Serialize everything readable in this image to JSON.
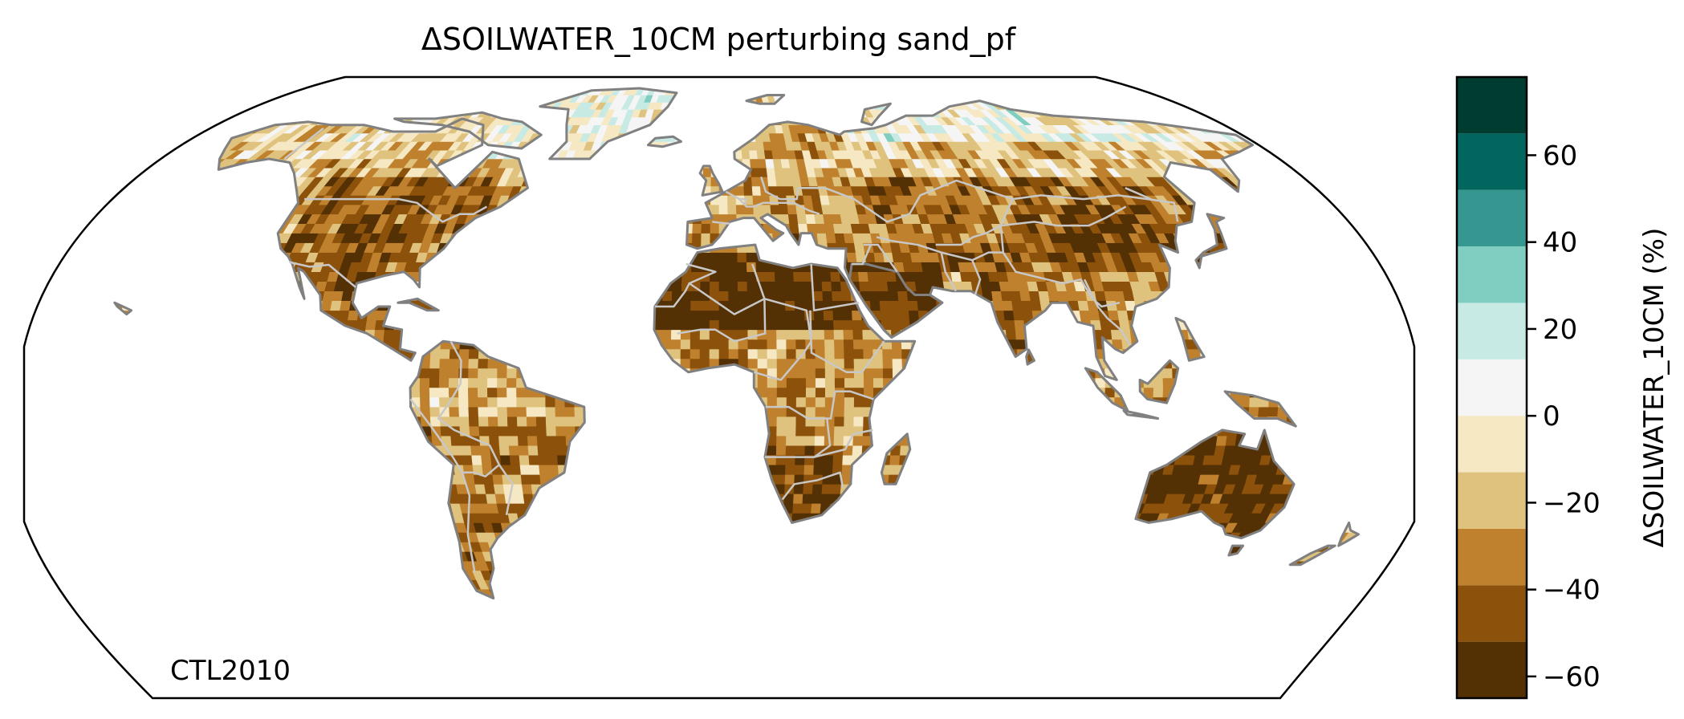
{
  "title": "ΔSOILWATER_10CM perturbing sand_pf",
  "map_label": "CTL2010",
  "colorbar": {
    "label": "ΔSOILWATER_10CM (%)",
    "range": [
      -65,
      65
    ],
    "levels": [
      {
        "from": -65,
        "to": -52,
        "color": "#543005"
      },
      {
        "from": -52,
        "to": -39,
        "color": "#8c510a"
      },
      {
        "from": -39,
        "to": -26,
        "color": "#bf812d"
      },
      {
        "from": -26,
        "to": -13,
        "color": "#dfc27d"
      },
      {
        "from": -13,
        "to": 0,
        "color": "#f6e8c3"
      },
      {
        "from": 0,
        "to": 13,
        "color": "#f5f5f5"
      },
      {
        "from": 13,
        "to": 26,
        "color": "#c7eae5"
      },
      {
        "from": 26,
        "to": 39,
        "color": "#80cdc1"
      },
      {
        "from": 39,
        "to": 52,
        "color": "#35978f"
      },
      {
        "from": 52,
        "to": 65,
        "color": "#01665e"
      },
      {
        "from": 65,
        "to": 78,
        "color": "#003c30"
      }
    ],
    "ticks": [
      {
        "value": 60,
        "label": "60"
      },
      {
        "value": 40,
        "label": "40"
      },
      {
        "value": 20,
        "label": "20"
      },
      {
        "value": 0,
        "label": "0"
      },
      {
        "value": -20,
        "label": "−20"
      },
      {
        "value": -40,
        "label": "−40"
      },
      {
        "value": -60,
        "label": "−60"
      }
    ]
  },
  "chart_data": {
    "type": "heatmap",
    "projection": "Robinson",
    "title": "ΔSOILWATER_10CM perturbing sand_pf",
    "colorbar_label": "ΔSOILWATER_10CM (%)",
    "colorbar_range": [
      -65,
      65
    ],
    "annotation": "CTL2010",
    "regions": [
      {
        "name": "Greenland",
        "value": 5
      },
      {
        "name": "Northern Canada",
        "value": -15
      },
      {
        "name": "United States",
        "value": -40
      },
      {
        "name": "Mexico / Central America",
        "value": -35
      },
      {
        "name": "Amazon",
        "value": -25
      },
      {
        "name": "Southern South America",
        "value": -35
      },
      {
        "name": "Europe",
        "value": -30
      },
      {
        "name": "Siberia",
        "value": 0
      },
      {
        "name": "Central Asia",
        "value": -35
      },
      {
        "name": "Sahara",
        "value": -60
      },
      {
        "name": "Arabian Peninsula",
        "value": -60
      },
      {
        "name": "China / Mongolia",
        "value": -50
      },
      {
        "name": "India",
        "value": -40
      },
      {
        "name": "Southeast Asia",
        "value": -30
      },
      {
        "name": "Central Africa",
        "value": -30
      },
      {
        "name": "Southern Africa",
        "value": -50
      },
      {
        "name": "Australia",
        "value": -55
      },
      {
        "name": "New Zealand",
        "value": -30
      }
    ]
  }
}
